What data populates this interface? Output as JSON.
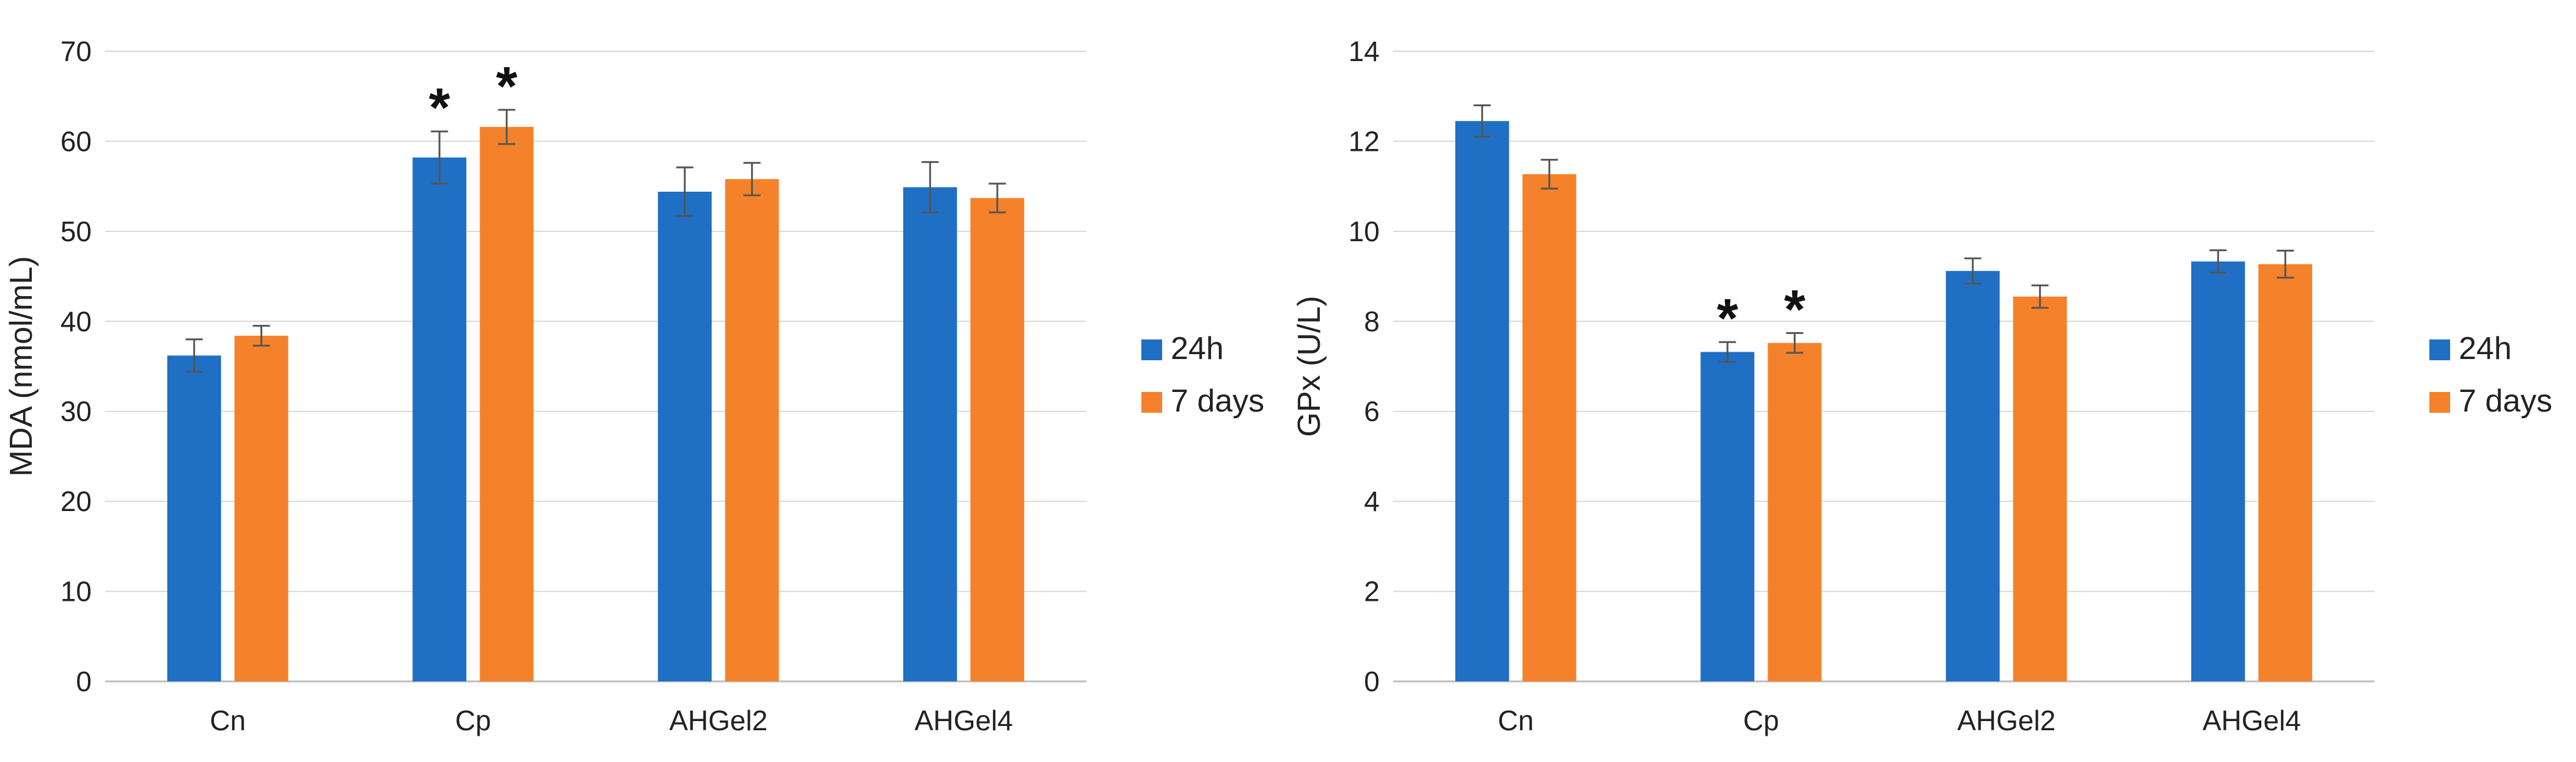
{
  "chart_data": [
    {
      "type": "bar",
      "title": "",
      "xlabel": "",
      "ylabel": "MDA (nmol/mL)",
      "ylim": [
        0,
        70
      ],
      "yticks": [
        0,
        10,
        20,
        30,
        40,
        50,
        60,
        70
      ],
      "grid": true,
      "legend_position": "right",
      "categories": [
        "Cn",
        "Cp",
        "AHGel2",
        "AHGel4"
      ],
      "series": [
        {
          "name": "24h",
          "color": "#1f6fc5",
          "values": [
            36.2,
            58.2,
            54.4,
            54.9
          ],
          "errors": [
            1.8,
            2.9,
            2.7,
            2.8
          ]
        },
        {
          "name": "7 days",
          "color": "#f5822a",
          "values": [
            38.4,
            61.6,
            55.8,
            53.7
          ],
          "errors": [
            1.1,
            1.9,
            1.8,
            1.6
          ]
        }
      ],
      "annotations": [
        {
          "text": "*",
          "category": "Cp",
          "series": 0
        },
        {
          "text": "*",
          "category": "Cp",
          "series": 1
        }
      ]
    },
    {
      "type": "bar",
      "title": "",
      "xlabel": "",
      "ylabel": "GPx (U/L)",
      "ylim": [
        0,
        14
      ],
      "yticks": [
        0,
        2,
        4,
        6,
        8,
        10,
        12,
        14
      ],
      "grid": true,
      "legend_position": "right",
      "categories": [
        "Cn",
        "Cp",
        "AHGel2",
        "AHGel4"
      ],
      "series": [
        {
          "name": "24h",
          "color": "#1f6fc5",
          "values": [
            12.45,
            7.32,
            9.12,
            9.33
          ],
          "errors": [
            0.35,
            0.22,
            0.28,
            0.25
          ]
        },
        {
          "name": "7 days",
          "color": "#f5822a",
          "values": [
            11.27,
            7.52,
            8.55,
            9.27
          ],
          "errors": [
            0.32,
            0.22,
            0.25,
            0.3
          ]
        }
      ],
      "annotations": [
        {
          "text": "*",
          "category": "Cp",
          "series": 0
        },
        {
          "text": "*",
          "category": "Cp",
          "series": 1
        }
      ]
    }
  ]
}
